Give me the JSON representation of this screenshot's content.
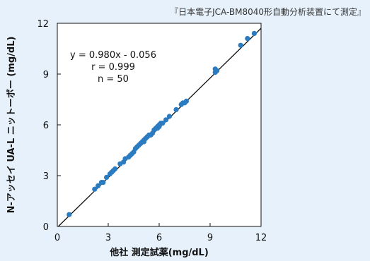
{
  "source_note": "『日本電子JCA-BM8040形自動分析装置にて測定』",
  "chart_data": {
    "type": "scatter",
    "xlabel": "他社 測定試薬(mg/dL)",
    "ylabel": "N-アッセイ UA-L ニットーボー (mg/dL)",
    "xlim": [
      0,
      12
    ],
    "ylim": [
      0,
      12
    ],
    "xticks": [
      "0",
      "3",
      "6",
      "9",
      "12"
    ],
    "yticks": [
      "0",
      "3",
      "6",
      "9",
      "12"
    ],
    "grid": false,
    "stats": [
      "y = 0.980x - 0.056",
      "r = 0.999",
      "n = 50"
    ],
    "regression": {
      "slope": 0.98,
      "intercept": -0.056
    },
    "marker_color": "#2b7bc0",
    "line_color": "#111111",
    "points": [
      [
        0.7,
        0.7
      ],
      [
        2.2,
        2.2
      ],
      [
        2.4,
        2.4
      ],
      [
        2.6,
        2.6
      ],
      [
        2.9,
        2.9
      ],
      [
        3.1,
        3.1
      ],
      [
        3.3,
        3.3
      ],
      [
        3.4,
        3.4
      ],
      [
        3.7,
        3.7
      ],
      [
        3.9,
        3.8
      ],
      [
        4.2,
        4.1
      ],
      [
        4.3,
        4.2
      ],
      [
        4.5,
        4.4
      ],
      [
        4.6,
        4.6
      ],
      [
        4.7,
        4.7
      ],
      [
        4.8,
        4.8
      ],
      [
        4.9,
        4.9
      ],
      [
        5.0,
        5.0
      ],
      [
        5.1,
        5.1
      ],
      [
        5.2,
        5.2
      ],
      [
        5.3,
        5.3
      ],
      [
        5.4,
        5.4
      ],
      [
        5.5,
        5.4
      ],
      [
        5.6,
        5.5
      ],
      [
        5.7,
        5.7
      ],
      [
        5.8,
        5.8
      ],
      [
        5.9,
        5.9
      ],
      [
        6.0,
        5.9
      ],
      [
        6.1,
        6.1
      ],
      [
        6.2,
        6.1
      ],
      [
        6.4,
        6.3
      ],
      [
        6.6,
        6.5
      ],
      [
        7.0,
        6.9
      ],
      [
        7.3,
        7.2
      ],
      [
        7.5,
        7.3
      ],
      [
        7.6,
        7.4
      ],
      [
        9.3,
        9.1
      ],
      [
        9.4,
        9.2
      ],
      [
        9.3,
        9.3
      ],
      [
        10.8,
        10.7
      ],
      [
        11.2,
        11.1
      ],
      [
        11.6,
        11.4
      ],
      [
        4.4,
        4.3
      ],
      [
        5.9,
        5.8
      ],
      [
        6.0,
        6.0
      ],
      [
        3.2,
        3.2
      ],
      [
        2.7,
        2.6
      ],
      [
        4.0,
        4.0
      ],
      [
        5.1,
        5.0
      ],
      [
        7.4,
        7.3
      ]
    ]
  }
}
